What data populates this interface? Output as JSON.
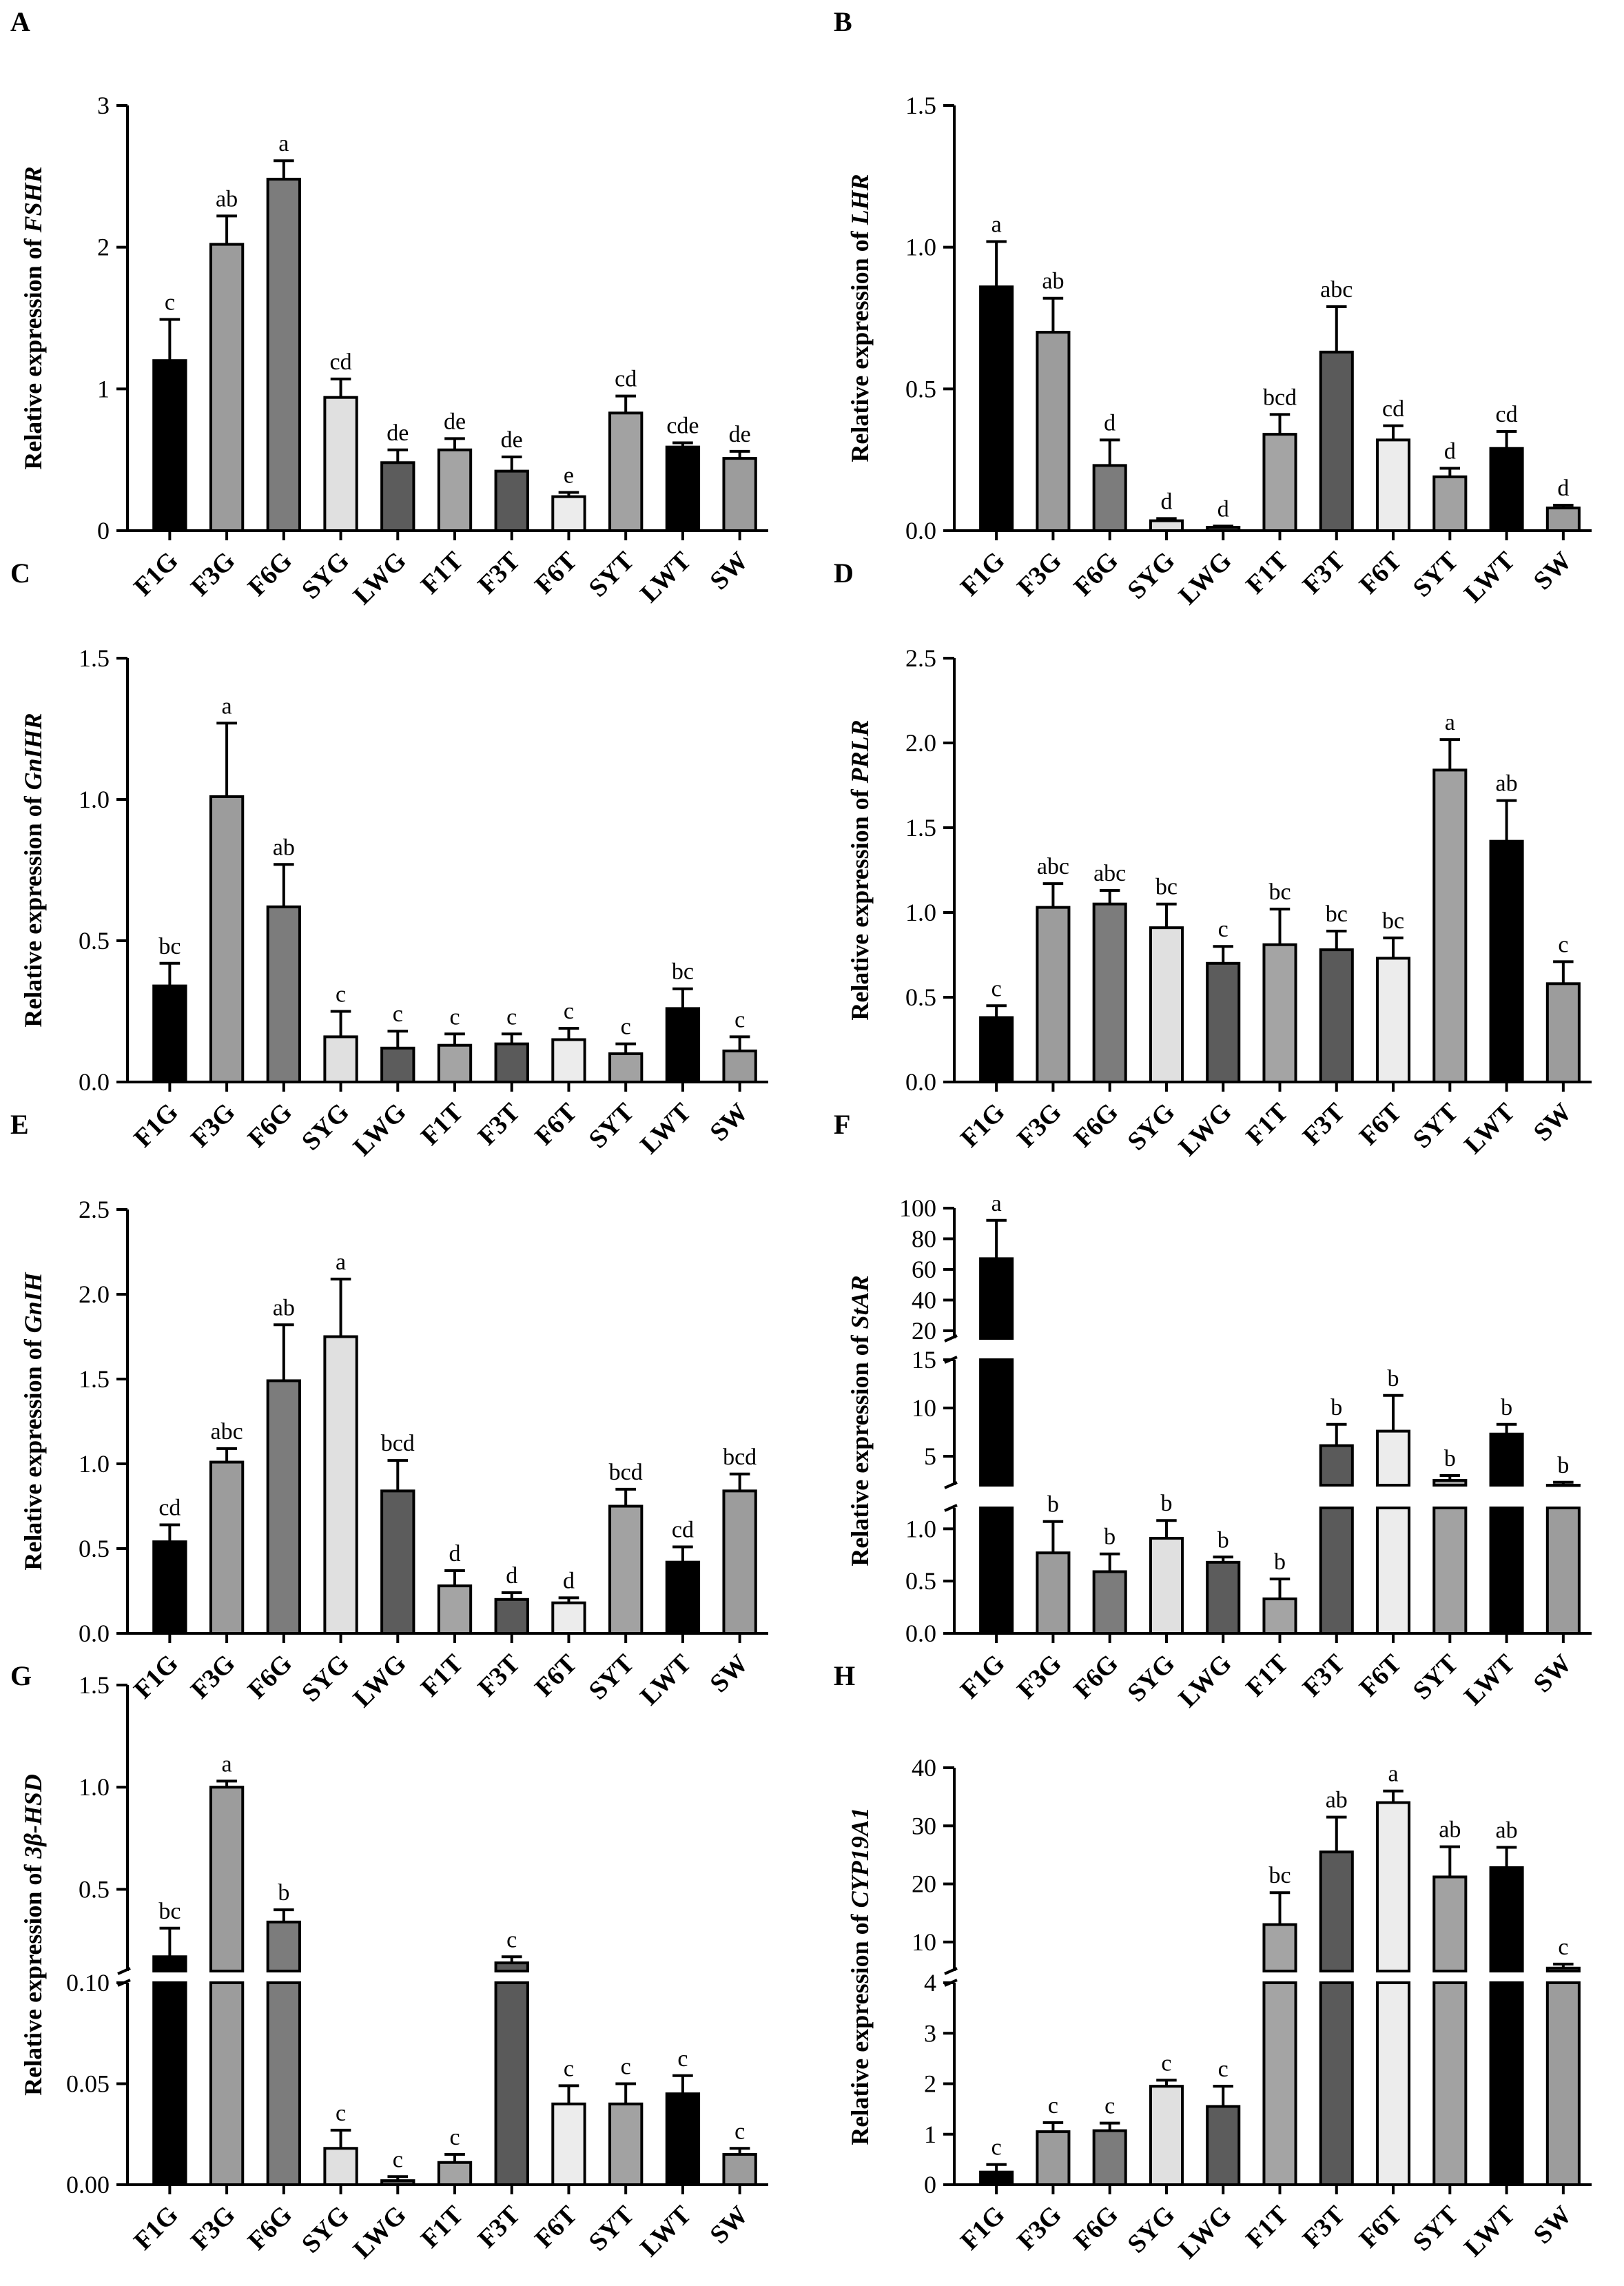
{
  "categories": [
    "F1G",
    "F3G",
    "F6G",
    "SYG",
    "LWG",
    "F1T",
    "F3T",
    "F6T",
    "SYT",
    "LWT",
    "SW"
  ],
  "colors": {
    "F1G": "#000000",
    "F3G": "#9c9c9c",
    "F6G": "#7c7c7c",
    "SYG": "#e0e0e0",
    "LWG": "#5c5c5c",
    "F1T": "#a4a4a4",
    "F3T": "#5a5a5a",
    "F6T": "#ececec",
    "SYT": "#a2a2a2",
    "LWT": "#000000",
    "SW": "#9c9c9c"
  },
  "chart_data": [
    {
      "panel": "A",
      "type": "bar",
      "ylabel_prefix": "Relative expression of ",
      "gene": "FSHR",
      "ylim": [
        0,
        3
      ],
      "ticks": [
        "0",
        "1",
        "2",
        "3"
      ],
      "values": [
        1.2,
        2.02,
        2.48,
        0.94,
        0.48,
        0.57,
        0.42,
        0.24,
        0.83,
        0.59,
        0.51
      ],
      "errors": [
        0.29,
        0.2,
        0.13,
        0.13,
        0.09,
        0.08,
        0.1,
        0.03,
        0.12,
        0.03,
        0.05
      ],
      "letters": [
        "c",
        "ab",
        "a",
        "cd",
        "de",
        "de",
        "de",
        "e",
        "cd",
        "cde",
        "de"
      ]
    },
    {
      "panel": "B",
      "type": "bar",
      "ylabel_prefix": "Relative expression of ",
      "gene": "LHR",
      "ylim": [
        0,
        1.5
      ],
      "ticks": [
        "0.0",
        "0.5",
        "1.0",
        "1.5"
      ],
      "values": [
        0.86,
        0.7,
        0.23,
        0.035,
        0.012,
        0.34,
        0.63,
        0.32,
        0.19,
        0.29,
        0.08
      ],
      "errors": [
        0.16,
        0.12,
        0.09,
        0.008,
        0.004,
        0.07,
        0.16,
        0.05,
        0.03,
        0.06,
        0.01
      ],
      "letters": [
        "a",
        "ab",
        "d",
        "d",
        "d",
        "bcd",
        "abc",
        "cd",
        "d",
        "cd",
        "d"
      ]
    },
    {
      "panel": "C",
      "type": "bar",
      "ylabel_prefix": "Relative expression of ",
      "gene": "GnIHR",
      "ylim": [
        0,
        1.5
      ],
      "ticks": [
        "0.0",
        "0.5",
        "1.0",
        "1.5"
      ],
      "values": [
        0.34,
        1.01,
        0.62,
        0.16,
        0.12,
        0.13,
        0.135,
        0.15,
        0.1,
        0.26,
        0.11
      ],
      "errors": [
        0.08,
        0.26,
        0.15,
        0.09,
        0.06,
        0.04,
        0.035,
        0.04,
        0.035,
        0.07,
        0.05
      ],
      "letters": [
        "bc",
        "a",
        "ab",
        "c",
        "c",
        "c",
        "c",
        "c",
        "c",
        "bc",
        "c"
      ]
    },
    {
      "panel": "D",
      "type": "bar",
      "ylabel_prefix": "Relative expression of ",
      "gene": "PRLR",
      "ylim": [
        0,
        2.5
      ],
      "ticks": [
        "0.0",
        "0.5",
        "1.0",
        "1.5",
        "2.0",
        "2.5"
      ],
      "values": [
        0.38,
        1.03,
        1.05,
        0.91,
        0.7,
        0.81,
        0.78,
        0.73,
        1.84,
        1.42,
        0.58
      ],
      "errors": [
        0.07,
        0.14,
        0.08,
        0.14,
        0.1,
        0.21,
        0.11,
        0.12,
        0.18,
        0.24,
        0.13
      ],
      "letters": [
        "c",
        "abc",
        "abc",
        "bc",
        "c",
        "bc",
        "bc",
        "bc",
        "a",
        "ab",
        "c"
      ]
    },
    {
      "panel": "E",
      "type": "bar",
      "ylabel_prefix": "Relative expression of ",
      "gene": "GnIH",
      "ylim": [
        0,
        2.5
      ],
      "ticks": [
        "0.0",
        "0.5",
        "1.0",
        "1.5",
        "2.0",
        "2.5"
      ],
      "values": [
        0.54,
        1.01,
        1.49,
        1.75,
        0.84,
        0.28,
        0.2,
        0.18,
        0.75,
        0.42,
        0.84
      ],
      "errors": [
        0.1,
        0.08,
        0.33,
        0.34,
        0.18,
        0.09,
        0.04,
        0.03,
        0.1,
        0.09,
        0.1
      ],
      "letters": [
        "cd",
        "abc",
        "ab",
        "a",
        "bcd",
        "d",
        "d",
        "d",
        "bcd",
        "cd",
        "bcd"
      ]
    },
    {
      "panel": "F",
      "type": "bar",
      "ylabel_prefix": "Relative expression of ",
      "gene": "StAR",
      "axis_break": true,
      "segments": [
        {
          "range": [
            0,
            1.2
          ],
          "ticks": [
            "0.0",
            "0.5",
            "1.0"
          ]
        },
        {
          "range": [
            2,
            15
          ],
          "ticks": [
            "5",
            "10",
            "15"
          ]
        },
        {
          "range": [
            15,
            100
          ],
          "ticks": [
            "20",
            "40",
            "60",
            "80",
            "100"
          ]
        }
      ],
      "values": [
        67,
        0.77,
        0.59,
        0.91,
        0.68,
        0.33,
        6.1,
        7.6,
        2.5,
        7.3,
        2.0
      ],
      "errors": [
        25,
        0.3,
        0.17,
        0.17,
        0.05,
        0.19,
        2.2,
        3.7,
        0.5,
        1.0,
        0.3
      ],
      "letters": [
        "a",
        "b",
        "b",
        "b",
        "b",
        "b",
        "b",
        "b",
        "b",
        "b",
        "b"
      ]
    },
    {
      "panel": "G",
      "type": "bar",
      "ylabel_prefix": "Relative expression of ",
      "gene": "3β-HSD",
      "axis_break": true,
      "segments": [
        {
          "range": [
            0,
            0.1
          ],
          "ticks": [
            "0.00",
            "0.05",
            "0.10"
          ]
        },
        {
          "range": [
            0.1,
            1.5
          ],
          "ticks": [
            "0.5",
            "1.0",
            "1.5"
          ]
        }
      ],
      "values": [
        0.17,
        1.0,
        0.34,
        0.018,
        0.002,
        0.011,
        0.14,
        0.04,
        0.04,
        0.045,
        0.015
      ],
      "errors": [
        0.14,
        0.03,
        0.06,
        0.009,
        0.002,
        0.004,
        0.03,
        0.009,
        0.01,
        0.009,
        0.003
      ],
      "letters": [
        "bc",
        "a",
        "b",
        "c",
        "c",
        "c",
        "c",
        "c",
        "c",
        "c",
        "c"
      ]
    },
    {
      "panel": "H",
      "type": "bar",
      "ylabel_prefix": "Relative expression of ",
      "gene": "CYP19A1",
      "axis_break": true,
      "segments": [
        {
          "range": [
            0,
            4
          ],
          "ticks": [
            "0",
            "1",
            "2",
            "3",
            "4"
          ]
        },
        {
          "range": [
            5,
            40
          ],
          "ticks": [
            "10",
            "20",
            "30",
            "40"
          ]
        }
      ],
      "values": [
        0.25,
        1.05,
        1.07,
        1.95,
        1.55,
        13,
        25.5,
        34,
        21.2,
        22.8,
        5.5
      ],
      "errors": [
        0.15,
        0.18,
        0.15,
        0.12,
        0.4,
        5.5,
        6.0,
        2.0,
        5.2,
        3.5,
        0.7
      ],
      "letters": [
        "c",
        "c",
        "c",
        "c",
        "c",
        "bc",
        "ab",
        "a",
        "ab",
        "ab",
        "c"
      ]
    }
  ]
}
